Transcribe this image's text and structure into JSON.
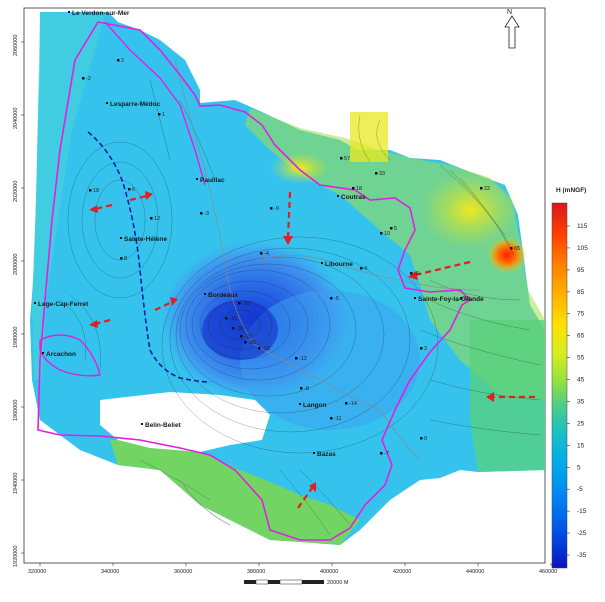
{
  "map": {
    "towns": [
      {
        "name": "Le Verdon-sur-Mer"
      },
      {
        "name": "Lesparre-Médoc"
      },
      {
        "name": "Pauillac"
      },
      {
        "name": "Sainte-Hélène"
      },
      {
        "name": "Lege-Cap-Ferret"
      },
      {
        "name": "Arcachon"
      },
      {
        "name": "Bordeaux"
      },
      {
        "name": "Coutras"
      },
      {
        "name": "Libourne"
      },
      {
        "name": "Sainte-Foy-la-Grande"
      },
      {
        "name": "Langon"
      },
      {
        "name": "Belin-Beliet"
      },
      {
        "name": "Bazas"
      }
    ],
    "x_ticks": [
      "320000",
      "340000",
      "360000",
      "380000",
      "400000",
      "420000",
      "440000",
      "460000"
    ],
    "y_ticks": [
      "2060000",
      "2040000",
      "2020000",
      "2000000",
      "1980000",
      "1960000",
      "1940000",
      "1920000"
    ],
    "north_label": "N",
    "scale_bar_label": "20000 M",
    "sample_points": [
      {
        "v": "2"
      },
      {
        "v": "-2"
      },
      {
        "v": "1"
      },
      {
        "v": "6"
      },
      {
        "v": "12"
      },
      {
        "v": "18"
      },
      {
        "v": "-4"
      },
      {
        "v": "-10"
      },
      {
        "v": "-15"
      },
      {
        "v": "-22"
      },
      {
        "v": "-30"
      },
      {
        "v": "-19"
      },
      {
        "v": "-26"
      },
      {
        "v": "-8"
      },
      {
        "v": "-12"
      },
      {
        "v": "-5"
      },
      {
        "v": "4"
      },
      {
        "v": "10"
      },
      {
        "v": "57"
      },
      {
        "v": "33"
      },
      {
        "v": "18"
      },
      {
        "v": "5"
      },
      {
        "v": "-6"
      },
      {
        "v": "22"
      },
      {
        "v": "65"
      },
      {
        "v": "-11"
      },
      {
        "v": "-14"
      },
      {
        "v": "-7"
      },
      {
        "v": "3"
      },
      {
        "v": "15"
      },
      {
        "v": "-3"
      },
      {
        "v": "-9"
      },
      {
        "v": "8"
      },
      {
        "v": "0"
      }
    ]
  },
  "colorbar": {
    "title": "H (mNGF)",
    "ticks": [
      "115",
      "105",
      "95",
      "85",
      "75",
      "65",
      "55",
      "45",
      "35",
      "25",
      "15",
      "5",
      "-5",
      "-15",
      "-25",
      "-35"
    ],
    "colors": [
      "#d7191c",
      "#ff3a00",
      "#ff7a00",
      "#ffb000",
      "#ffe000",
      "#e0f020",
      "#b0e830",
      "#70d850",
      "#30c8a0",
      "#10b8d0",
      "#00a8e8",
      "#0090f0",
      "#0070f0",
      "#0050e0",
      "#0030d0",
      "#0010c0"
    ]
  }
}
